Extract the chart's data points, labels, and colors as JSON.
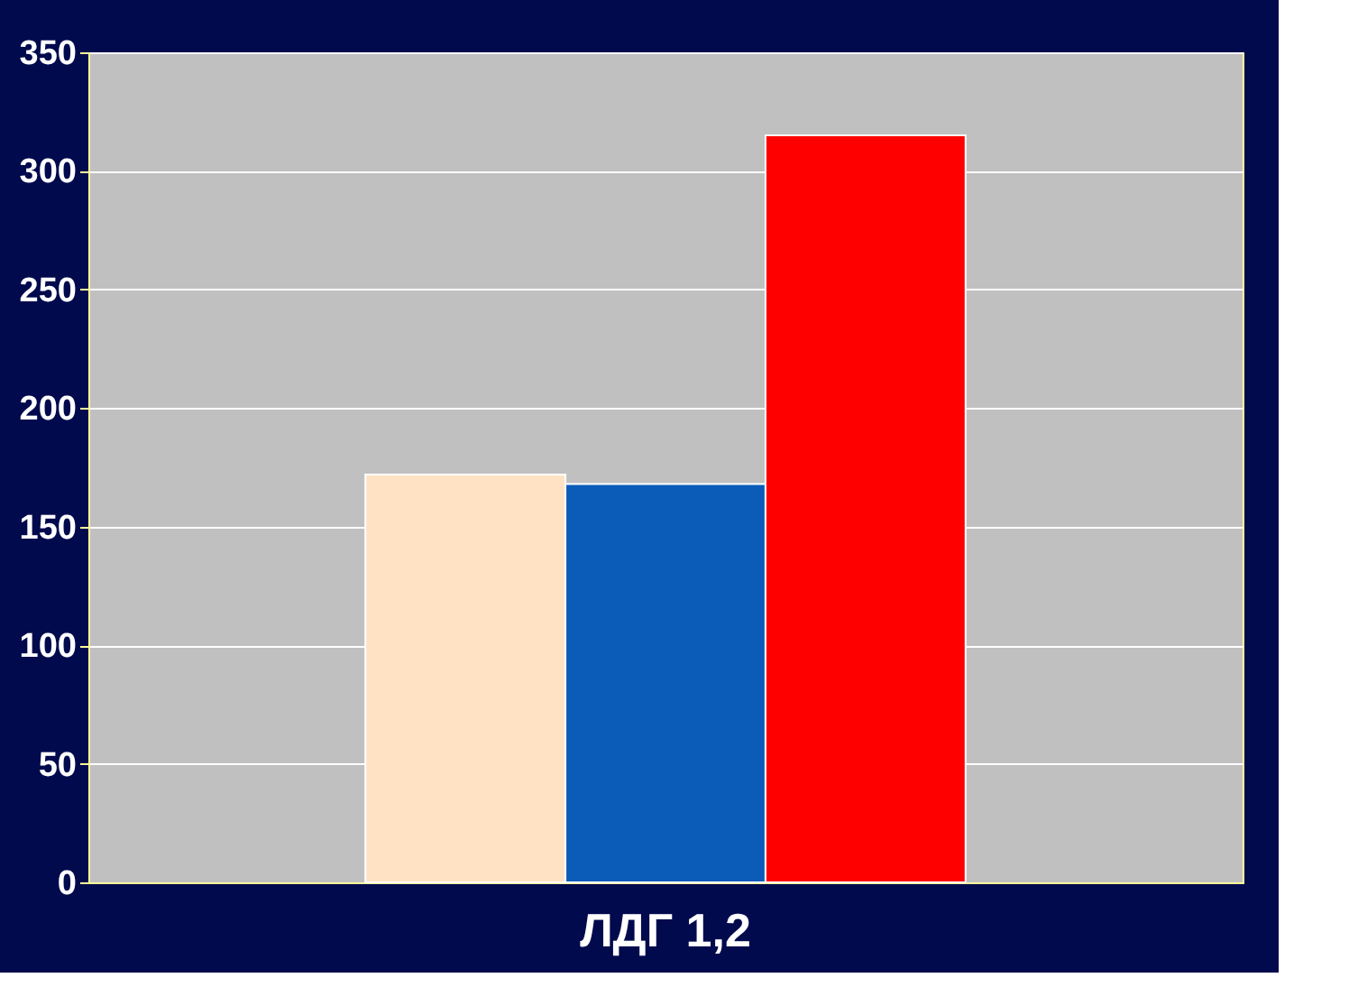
{
  "chart_data": {
    "type": "bar",
    "categories": [
      "ЛДГ 1,2"
    ],
    "series": [
      {
        "color": "#ffe2c4",
        "values": [
          172
        ]
      },
      {
        "color": "#0a5cb8",
        "values": [
          168
        ]
      },
      {
        "color": "#ff0000",
        "values": [
          315
        ]
      }
    ],
    "ylim": [
      0,
      350
    ],
    "yticks": [
      0,
      50,
      100,
      150,
      200,
      250,
      300,
      350
    ],
    "grid": "y",
    "legend": false
  }
}
